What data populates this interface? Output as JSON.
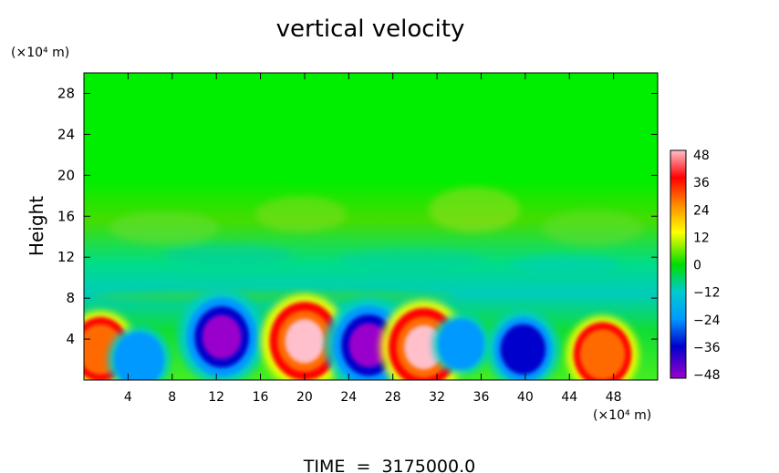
{
  "chart_data": {
    "type": "heatmap",
    "title": "vertical velocity",
    "ylabel": "Height",
    "y_unit_label": "(×10⁴ m)",
    "x_unit_label": "(×10⁴ m)",
    "xlim": [
      0,
      52
    ],
    "ylim": [
      0,
      30
    ],
    "x_ticks": [
      4,
      8,
      12,
      16,
      20,
      24,
      28,
      32,
      36,
      40,
      44,
      48
    ],
    "y_ticks": [
      4,
      8,
      12,
      16,
      20,
      24,
      28
    ],
    "colorbar": {
      "ticks": [
        48,
        36,
        24,
        12,
        0,
        -12,
        -24,
        -36,
        -48
      ],
      "range": [
        -48,
        48
      ],
      "colors": [
        "#ffc0cb",
        "#ff0000",
        "#ff8c00",
        "#ffff00",
        "#00dd00",
        "#00cccc",
        "#0099ff",
        "#0000cc",
        "#9900cc"
      ]
    },
    "features": [
      {
        "x": 1.5,
        "y": 3.0,
        "value": 36
      },
      {
        "x": 5.0,
        "y": 2.0,
        "value": -28
      },
      {
        "x": 12.5,
        "y": 4.2,
        "value": -48
      },
      {
        "x": 20.0,
        "y": 3.8,
        "value": 48
      },
      {
        "x": 25.8,
        "y": 3.4,
        "value": -48
      },
      {
        "x": 30.8,
        "y": 3.2,
        "value": 48
      },
      {
        "x": 34.2,
        "y": 3.5,
        "value": -24
      },
      {
        "x": 39.8,
        "y": 3.0,
        "value": -36
      },
      {
        "x": 47.0,
        "y": 2.5,
        "value": 36
      }
    ],
    "footer": "TIME  =  3175000.0"
  }
}
